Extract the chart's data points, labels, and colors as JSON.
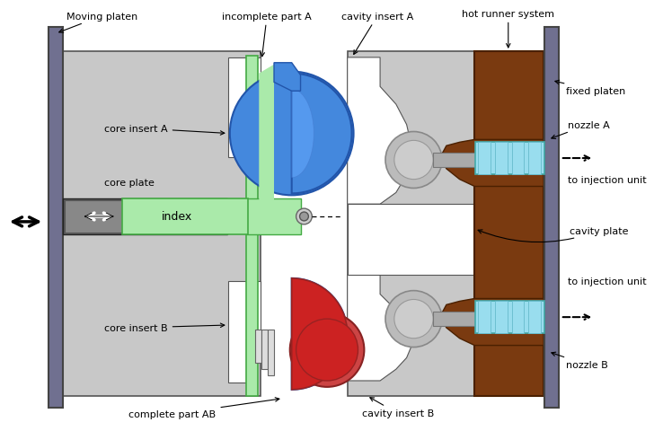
{
  "labels": {
    "moving_platen": "Moving platen",
    "core_insert_A": "core insert A",
    "core_plate": "core plate",
    "index": "index",
    "core_insert_B": "core insert B",
    "complete_part_AB": "complete part AB",
    "incomplete_part_A": "incomplete part A",
    "cavity_insert_A": "cavity insert A",
    "cavity_insert_B": "cavity insert B",
    "hot_runner_system": "hot runner system",
    "fixed_platen": "fixed platen",
    "nozzle_A": "nozzle A",
    "nozzle_B": "nozzle B",
    "to_injection_unit_A": "to injection unit",
    "to_injection_unit_B": "to injection unit",
    "cavity_plate": "cavity plate"
  },
  "colors": {
    "moving_platen": "#707090",
    "core_plate": "#c8c8c8",
    "index_green": "#aaeaaa",
    "index_dark": "#606060",
    "blue_part": "#4488dd",
    "blue_highlight": "#66aaff",
    "green_strip": "#aaeaaa",
    "red_part": "#cc2222",
    "hot_runner_brown": "#7a3a10",
    "fixed_platen_gray": "#707090",
    "nozzle_cyan": "#99ddee",
    "nozzle_steel": "#aaaaaa",
    "gray_sphere": "#aaaaaa",
    "white": "#ffffff",
    "black": "#000000",
    "light_gray": "#dddddd",
    "mid_gray": "#bbbbbb"
  }
}
